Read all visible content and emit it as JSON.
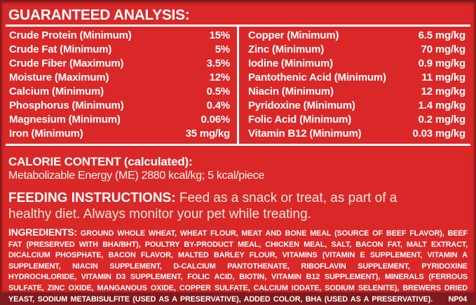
{
  "label": {
    "colors": {
      "background": "#da2828",
      "edge": "#7f1b1e",
      "text": "#ffffff",
      "rule": "#ffffff"
    },
    "title": "GUARANTEED ANALYSIS:",
    "analysis": {
      "left_rows": [
        {
          "name": "Crude Protein (Minimum)",
          "value": "15%"
        },
        {
          "name": "Crude Fat (Minimum)",
          "value": "5%"
        },
        {
          "name": "Crude Fiber (Maximum)",
          "value": "3.5%"
        },
        {
          "name": "Moisture (Maximum)",
          "value": "12%"
        },
        {
          "name": "Calcium (Minimum)",
          "value": "0.5%"
        },
        {
          "name": "Phosphorus (Minimum)",
          "value": "0.4%"
        },
        {
          "name": "Magnesium (Minimum)",
          "value": "0.06%"
        },
        {
          "name": "Iron (Minimum)",
          "value": "35 mg/kg"
        }
      ],
      "right_rows": [
        {
          "name": "Copper (Minimum)",
          "value": "6.5 mg/kg"
        },
        {
          "name": "Zinc (Minimum)",
          "value": "70 mg/kg"
        },
        {
          "name": "Iodine (Minimum)",
          "value": "0.9 mg/kg"
        },
        {
          "name": "Pantothenic Acid (Minimum)",
          "value": "11 mg/kg"
        },
        {
          "name": "Niacin (Minimum)",
          "value": "12 mg/kg"
        },
        {
          "name": "Pyridoxine (Minimum)",
          "value": "1.4 mg/kg"
        },
        {
          "name": "Folic Acid (Minimum)",
          "value": "0.2 mg/kg"
        },
        {
          "name": "Vitamin B12 (Minimum)",
          "value": "0.03 mg/kg"
        }
      ]
    },
    "calorie": {
      "heading": "CALORIE CONTENT (calculated):",
      "body": "Metabolizable Energy (ME) 2880 kcal/kg; 5 kcal/piece"
    },
    "feeding": {
      "heading": "FEEDING INSTRUCTIONS:",
      "body": "Feed as a snack or treat, as part of a healthy diet. Always monitor your pet while treating."
    },
    "ingredients": {
      "heading": "INGREDIENTS:",
      "body": "GROUND WHOLE WHEAT, WHEAT FLOUR, MEAT AND BONE MEAL (SOURCE OF BEEF FLAVOR), BEEF FAT (PRESERVED WITH BHA/BHT), POULTRY BY-PRODUCT MEAL, CHICKEN MEAL, SALT, BACON FAT, MALT EXTRACT, DICALCIUM PHOSPHATE, BACON FLAVOR, MALTED BARLEY FLOUR, VITAMINS (VITAMIN E SUPPLEMENT, VITAMIN A SUPPLEMENT, NIACIN SUPPLEMENT, D-CALCIUM PANTOTHENATE, RIBOFLAVIN SUPPLEMENT, PYRIDOXINE HYDROCHLORIDE, VITAMIN D3 SUPPLEMENT, FOLIC ACID, BIOTIN, VITAMIN B12 SUPPLEMENT), MINERALS (FERROUS SULFATE, ZINC OXIDE, MANGANOUS OXIDE, COPPER SULFATE, CALCIUM IODATE, SODIUM SELENITE), BREWERS DRIED YEAST, SODIUM METABISULFITE (USED AS A PRESERVATIVE), ADDED COLOR, BHA (USED AS A PRESERVATIVE).",
      "code": "NP04"
    }
  }
}
